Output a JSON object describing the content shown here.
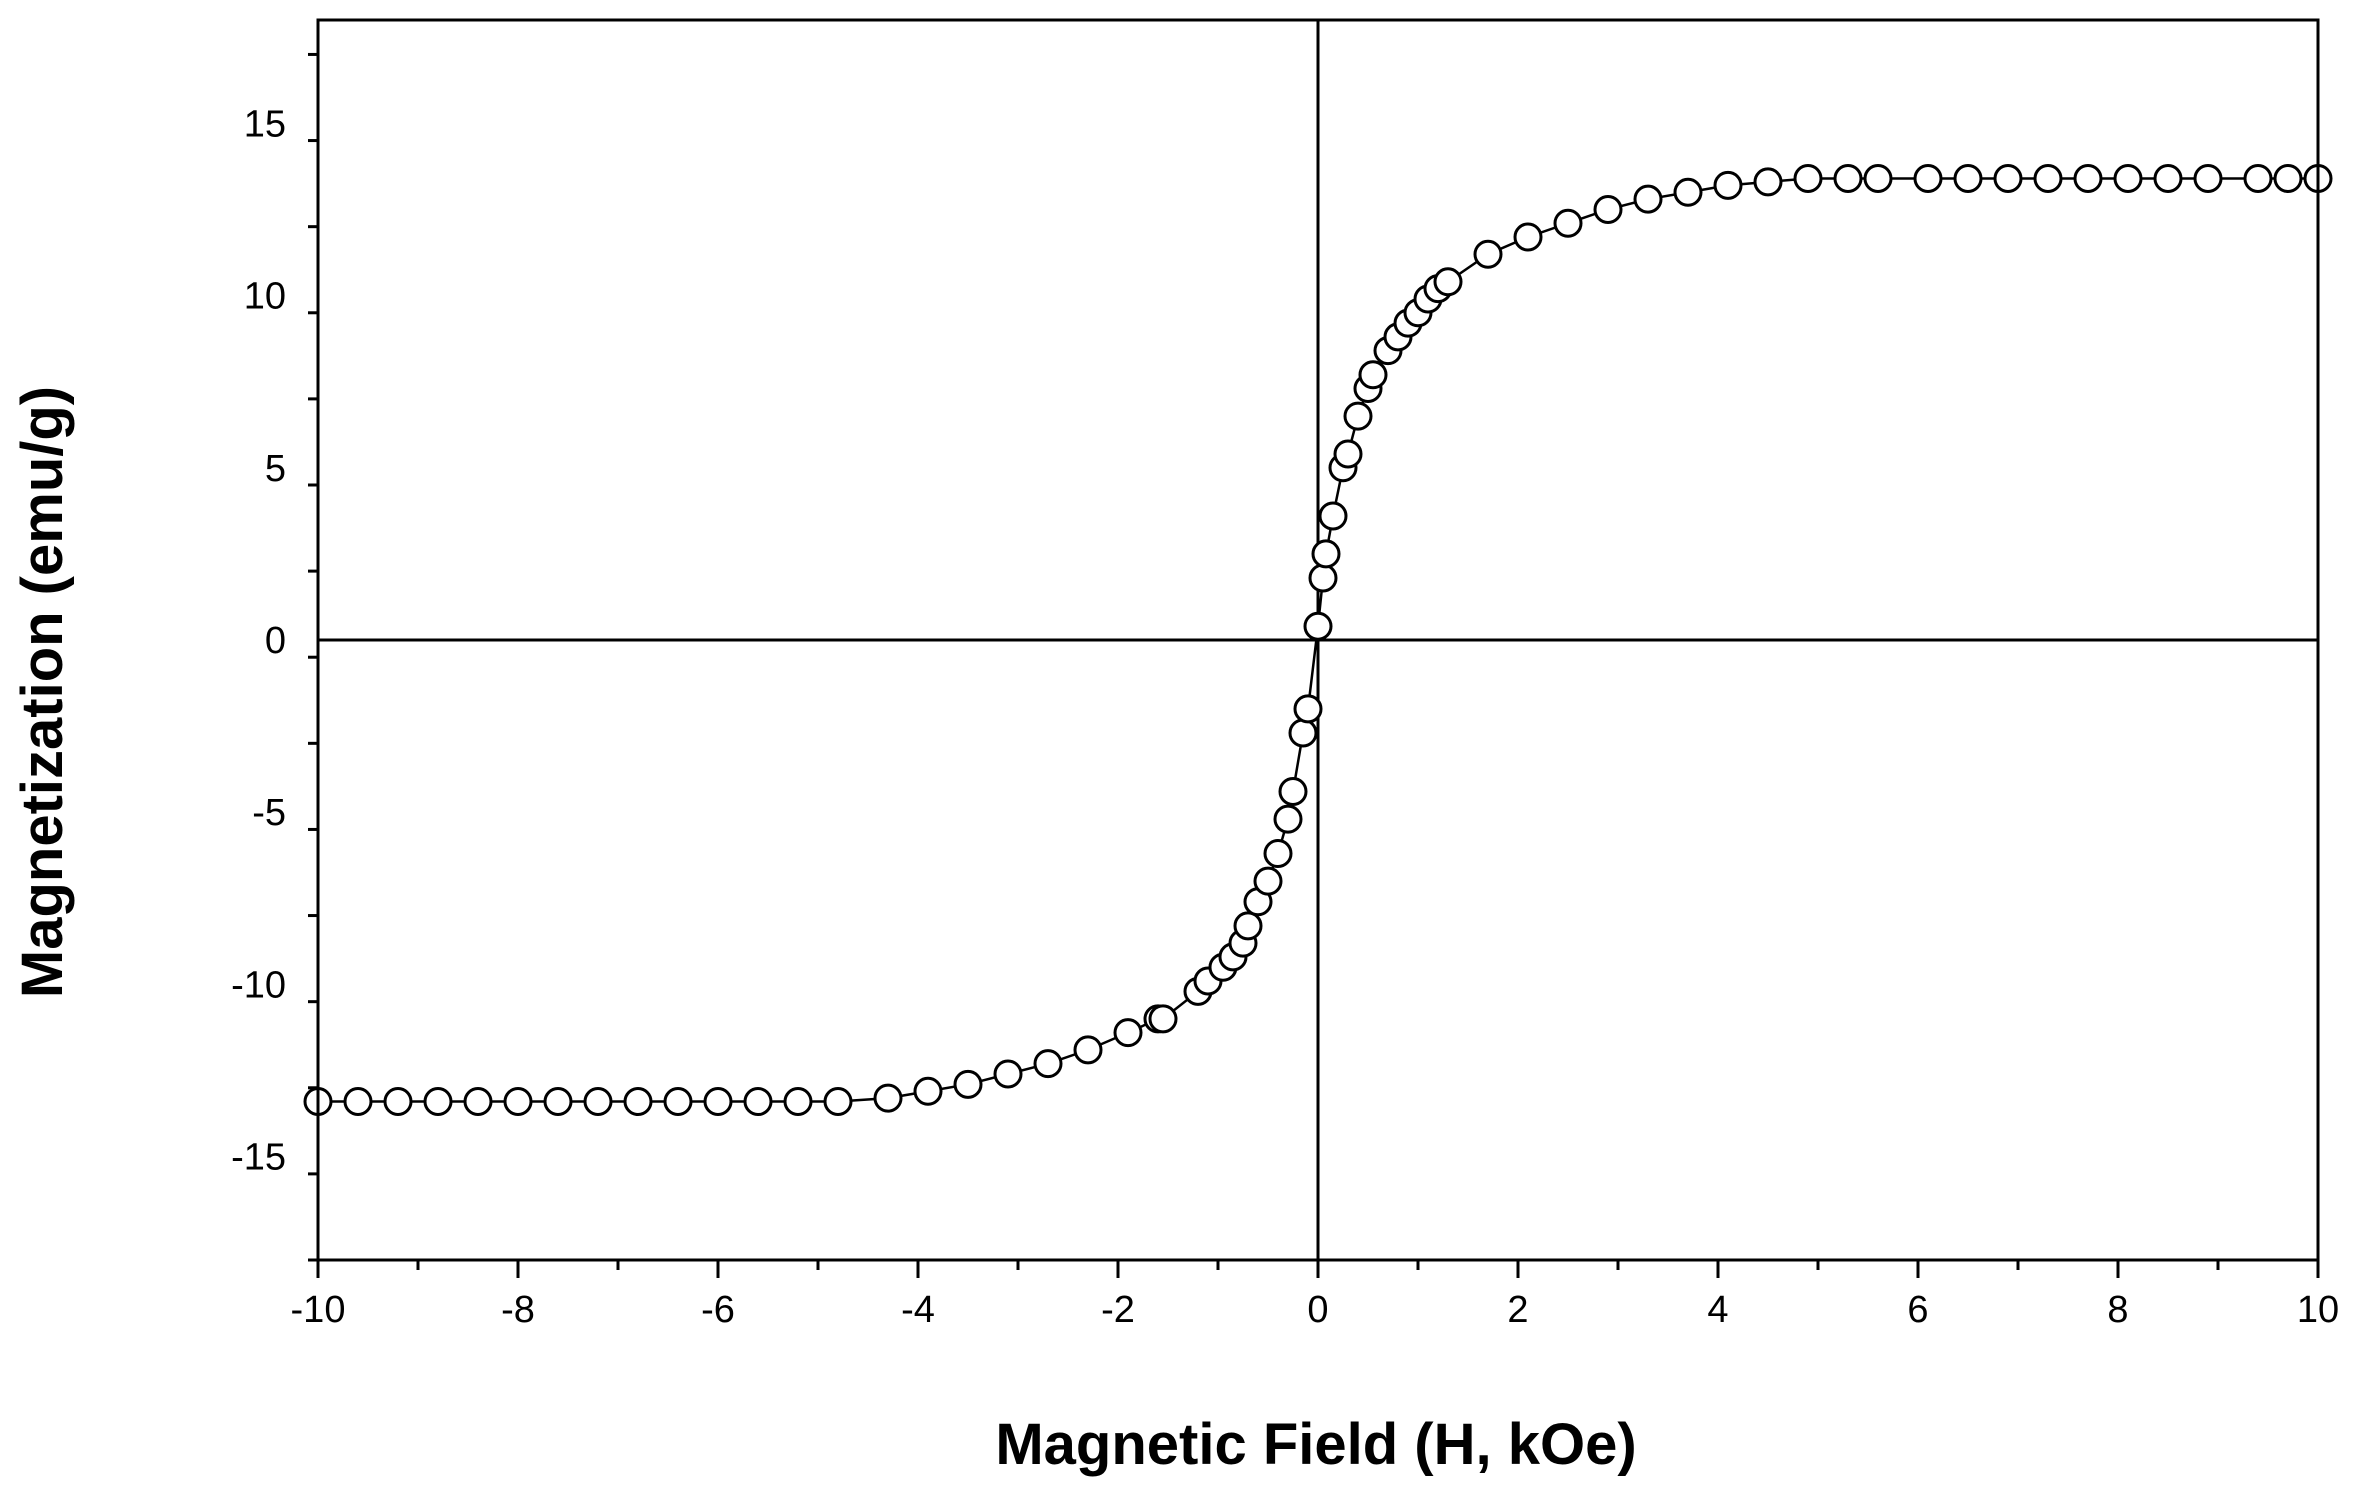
{
  "chart_data": {
    "type": "scatter",
    "title": "",
    "xlabel": "Magnetic Field (H, kOe)",
    "ylabel": "Magnetization (emu/g)",
    "xlim": [
      -10,
      10
    ],
    "ylim": [
      -18,
      18
    ],
    "x_ticks": [
      -10,
      -8,
      -6,
      -4,
      -2,
      0,
      2,
      4,
      6,
      8,
      10
    ],
    "y_ticks": [
      -15,
      -10,
      -5,
      0,
      5,
      10,
      15
    ],
    "x_tick_labels": [
      "-10",
      "-8",
      "-6",
      "-4",
      "-2",
      "0",
      "2",
      "4",
      "6",
      "8",
      "10"
    ],
    "y_tick_labels": [
      "-15",
      "-10",
      "-5",
      "0",
      "5",
      "10",
      "15"
    ],
    "grid": false,
    "legend": "none",
    "zero_lines": true,
    "marker": "open-circle",
    "colors": {
      "line": "#000000",
      "marker_fill": "#ffffff",
      "background": "#ffffff"
    },
    "series": [
      {
        "x": [
          -10,
          -9.6,
          -9.2,
          -8.8,
          -8.4,
          -8.0,
          -7.6,
          -7.2,
          -6.8,
          -6.4,
          -6.0,
          -5.6,
          -5.2,
          -4.8,
          -4.3,
          -3.9,
          -3.5,
          -3.1,
          -2.7,
          -2.3,
          -1.9,
          -1.6,
          -1.55,
          -1.2,
          -1.1,
          -0.95,
          -0.85,
          -0.75,
          -0.7,
          -0.6,
          -0.5,
          -0.4,
          -0.3,
          -0.25,
          -0.15,
          -0.1,
          0.0,
          0.05,
          0.08,
          0.15,
          0.25,
          0.3,
          0.4,
          0.5,
          0.55,
          0.7,
          0.8,
          0.9,
          1.0,
          1.1,
          1.2,
          1.3,
          1.7,
          2.1,
          2.5,
          2.9,
          3.3,
          3.7,
          4.1,
          4.5,
          4.9,
          5.3,
          5.6,
          6.1,
          6.5,
          6.9,
          7.3,
          7.7,
          8.1,
          8.5,
          8.9,
          9.4,
          9.7,
          10.0
        ],
        "y": [
          -13.4,
          -13.4,
          -13.4,
          -13.4,
          -13.4,
          -13.4,
          -13.4,
          -13.4,
          -13.4,
          -13.4,
          -13.4,
          -13.4,
          -13.4,
          -13.4,
          -13.3,
          -13.1,
          -12.9,
          -12.6,
          -12.3,
          -11.9,
          -11.4,
          -11.0,
          -11.0,
          -10.2,
          -9.9,
          -9.5,
          -9.2,
          -8.8,
          -8.3,
          -7.6,
          -7.0,
          -6.2,
          -5.2,
          -4.4,
          -2.7,
          -2.0,
          0.4,
          1.8,
          2.5,
          3.6,
          5.0,
          5.4,
          6.5,
          7.3,
          7.7,
          8.4,
          8.8,
          9.2,
          9.5,
          9.9,
          10.2,
          10.4,
          11.2,
          11.7,
          12.1,
          12.5,
          12.8,
          13.0,
          13.2,
          13.3,
          13.4,
          13.4,
          13.4,
          13.4,
          13.4,
          13.4,
          13.4,
          13.4,
          13.4,
          13.4,
          13.4,
          13.4,
          13.4,
          13.4
        ]
      }
    ]
  }
}
